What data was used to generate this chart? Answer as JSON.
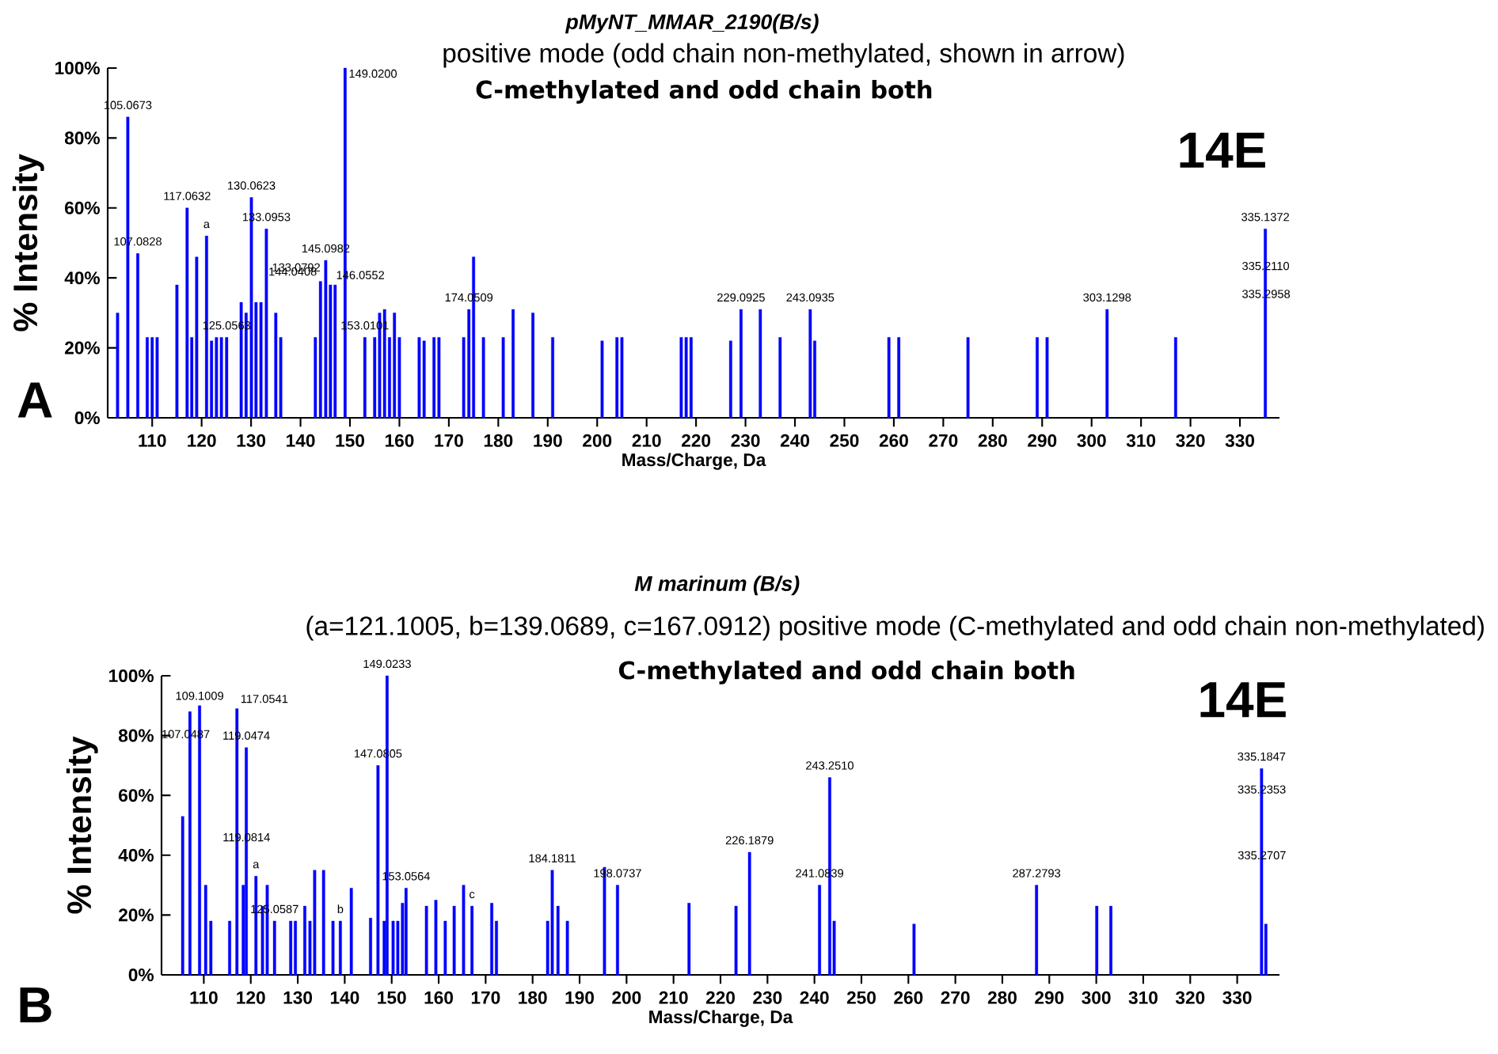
{
  "chart_data": [
    {
      "type": "bar",
      "title": "*pMyNT_MMAR_2190*(B/s)",
      "subtitle": "positive mode (odd chain non-methylated, shown in arrow)",
      "xlabel": "Mass/Charge, Da",
      "ylabel": "% Intensity",
      "color": "#0000ff",
      "x": [
        103,
        105.0673,
        107.0828,
        109,
        110,
        111,
        115,
        117.0632,
        118,
        119,
        121,
        122,
        123,
        124,
        125.0563,
        128,
        129,
        130.0623,
        131,
        132,
        133.0953,
        135,
        136,
        143,
        144.0408,
        145.0982,
        146.0552,
        147,
        149.02,
        153.0101,
        155,
        156,
        157,
        158,
        159,
        160,
        164,
        165,
        167,
        168,
        173,
        174.0509,
        175,
        177,
        181,
        183,
        187,
        191,
        201,
        204,
        205,
        217,
        218,
        219,
        227,
        229.0925,
        233,
        237,
        243.0935,
        244,
        259,
        261,
        275,
        289,
        291,
        303.1298,
        317,
        335.1372
      ],
      "values": [
        30,
        86,
        47,
        23,
        23,
        23,
        38,
        60,
        23,
        46,
        52,
        22,
        23,
        23,
        23,
        33,
        30,
        63,
        33,
        33,
        54,
        30,
        23,
        23,
        39,
        45,
        38,
        38,
        100,
        23,
        23,
        30,
        31,
        23,
        30,
        23,
        23,
        22,
        23,
        23,
        23,
        31,
        46,
        23,
        23,
        31,
        30,
        23,
        22,
        23,
        23,
        23,
        23,
        23,
        22,
        31,
        31,
        23,
        31,
        22,
        23,
        23,
        23,
        23,
        23,
        31,
        23,
        54
      ],
      "xlim": [
        101,
        338
      ],
      "ylim": [
        0,
        100
      ],
      "xticks": [
        110,
        120,
        130,
        140,
        150,
        160,
        170,
        180,
        190,
        200,
        210,
        220,
        230,
        240,
        250,
        260,
        270,
        280,
        290,
        300,
        310,
        320,
        330
      ],
      "yticks": [
        {
          "value": 0,
          "label": "0%"
        },
        {
          "value": 20,
          "label": "20%"
        },
        {
          "value": 40,
          "label": "40%"
        },
        {
          "value": 60,
          "label": "60%"
        },
        {
          "value": 80,
          "label": "80%"
        },
        {
          "value": 100,
          "label": "100%"
        }
      ],
      "annotations": [
        "C-methylated and odd chain both",
        "14E",
        "A",
        {
          "text": "105.0673",
          "x": 105.0673,
          "y": 86
        },
        {
          "text": "107.0828",
          "x": 107.0828,
          "y": 47
        },
        {
          "text": "117.0632",
          "x": 117.0632,
          "y": 60
        },
        {
          "text": "a",
          "x": 121,
          "y": 52
        },
        {
          "text": "130.0623",
          "x": 130.0623,
          "y": 63
        },
        {
          "text": "133.0953",
          "x": 133.0953,
          "y": 54
        },
        {
          "text": "145.0982",
          "x": 145.0982,
          "y": 45
        },
        {
          "text": "144.0408",
          "x": 144.0408,
          "y": 39
        },
        {
          "text": "133.0792",
          "x": 133.0792,
          "y": 43
        },
        {
          "text": "146.0552",
          "x": 146.0552,
          "y": 38
        },
        {
          "text": "125.0563",
          "x": 125.0563,
          "y": 23
        },
        {
          "text": "149.0200",
          "x": 149.02,
          "y": 100
        },
        {
          "text": "153.0101",
          "x": 153.0101,
          "y": 23
        },
        {
          "text": "174.0509",
          "x": 174.0509,
          "y": 31
        },
        {
          "text": "229.0925",
          "x": 229.0925,
          "y": 31
        },
        {
          "text": "243.0935",
          "x": 243.0935,
          "y": 31
        },
        {
          "text": "303.1298",
          "x": 303.1298,
          "y": 31
        },
        {
          "text": "335.1372",
          "x": 335.1372,
          "y": 54
        },
        {
          "text": "335.2110",
          "x": 335.211,
          "y": 40
        },
        {
          "text": "335.2958",
          "x": 335.2958,
          "y": 32
        }
      ]
    },
    {
      "type": "bar",
      "title": "*M marinum* (B/s)",
      "subtitle": "(a=121.1005, b=139.0689, c=167.0912) positive mode (C-methylated and odd chain non-methylated)",
      "xlabel": "Mass/Charge, Da",
      "ylabel": "% Intensity",
      "color": "#0000ff",
      "x": [
        105.5,
        107.0487,
        109.1009,
        110.4,
        111.5,
        115.5,
        117.0541,
        118.4,
        119.0474,
        121.1005,
        122.5,
        123.5,
        125.0587,
        128.5,
        129.5,
        131.5,
        132.6,
        133.6,
        135.5,
        137.5,
        139.0689,
        141.4,
        145.5,
        147.0805,
        148.4,
        149.0233,
        150.3,
        151.3,
        152.3,
        153.0564,
        157.4,
        159.4,
        161.4,
        163.3,
        165.3,
        167.0912,
        171.3,
        172.3,
        183.2,
        184.1811,
        185.4,
        187.4,
        195.3,
        198.0737,
        213.3,
        223.3,
        226.1879,
        241.0839,
        243.251,
        244.2,
        261.2,
        287.2793,
        300.1,
        303.1,
        335.1847,
        336.1
      ],
      "values": [
        53,
        88,
        90,
        30,
        18,
        18,
        89,
        30,
        76,
        33,
        23,
        30,
        18,
        18,
        18,
        23,
        18,
        35,
        35,
        18,
        18,
        29,
        19,
        70,
        18,
        100,
        18,
        18,
        24,
        29,
        23,
        25,
        18,
        23,
        30,
        23,
        24,
        18,
        18,
        35,
        23,
        18,
        36,
        30,
        24,
        23,
        41,
        30,
        66,
        18,
        17,
        30,
        23,
        23,
        69,
        17
      ],
      "xlim": [
        101,
        339
      ],
      "ylim": [
        0,
        100
      ],
      "xticks": [
        110,
        120,
        130,
        140,
        150,
        160,
        170,
        180,
        190,
        200,
        210,
        220,
        230,
        240,
        250,
        260,
        270,
        280,
        290,
        300,
        310,
        320,
        330
      ],
      "yticks": [
        {
          "value": 0,
          "label": "0%"
        },
        {
          "value": 20,
          "label": "20%"
        },
        {
          "value": 40,
          "label": "40%"
        },
        {
          "value": 60,
          "label": "60%"
        },
        {
          "value": 80,
          "label": "80%"
        },
        {
          "value": 100,
          "label": "100%"
        }
      ],
      "annotations": [
        "C-methylated and odd chain both",
        "14E",
        "B",
        {
          "text": "109.1009",
          "x": 109.1009,
          "y": 90
        },
        {
          "text": "117.0541",
          "x": 117.0541,
          "y": 89
        },
        {
          "text": "107.0487",
          "x": 107.0487,
          "y": 88
        },
        {
          "text": "119.0474",
          "x": 119.0474,
          "y": 76
        },
        {
          "text": "147.0805",
          "x": 147.0805,
          "y": 70
        },
        {
          "text": "149.0233",
          "x": 149.0233,
          "y": 100
        },
        {
          "text": "119.0814",
          "x": 119.0814,
          "y": 42
        },
        {
          "text": "a",
          "x": 121.1005,
          "y": 33
        },
        {
          "text": "125.0587",
          "x": 125.0587,
          "y": 18
        },
        {
          "text": "153.0564",
          "x": 153.0564,
          "y": 29
        },
        {
          "text": "b",
          "x": 139.0689,
          "y": 18
        },
        {
          "text": "c",
          "x": 167.0912,
          "y": 23
        },
        {
          "text": "184.1811",
          "x": 184.1811,
          "y": 35
        },
        {
          "text": "198.0737",
          "x": 198.0737,
          "y": 30
        },
        {
          "text": "226.1879",
          "x": 226.1879,
          "y": 41
        },
        {
          "text": "241.0839",
          "x": 241.0839,
          "y": 30
        },
        {
          "text": "243.2510",
          "x": 243.251,
          "y": 66
        },
        {
          "text": "287.2793",
          "x": 287.2793,
          "y": 30
        },
        {
          "text": "335.1847",
          "x": 335.1847,
          "y": 69
        },
        {
          "text": "335.2353",
          "x": 335.2353,
          "y": 58
        },
        {
          "text": "335.2707",
          "x": 335.2707,
          "y": 36
        }
      ]
    }
  ]
}
